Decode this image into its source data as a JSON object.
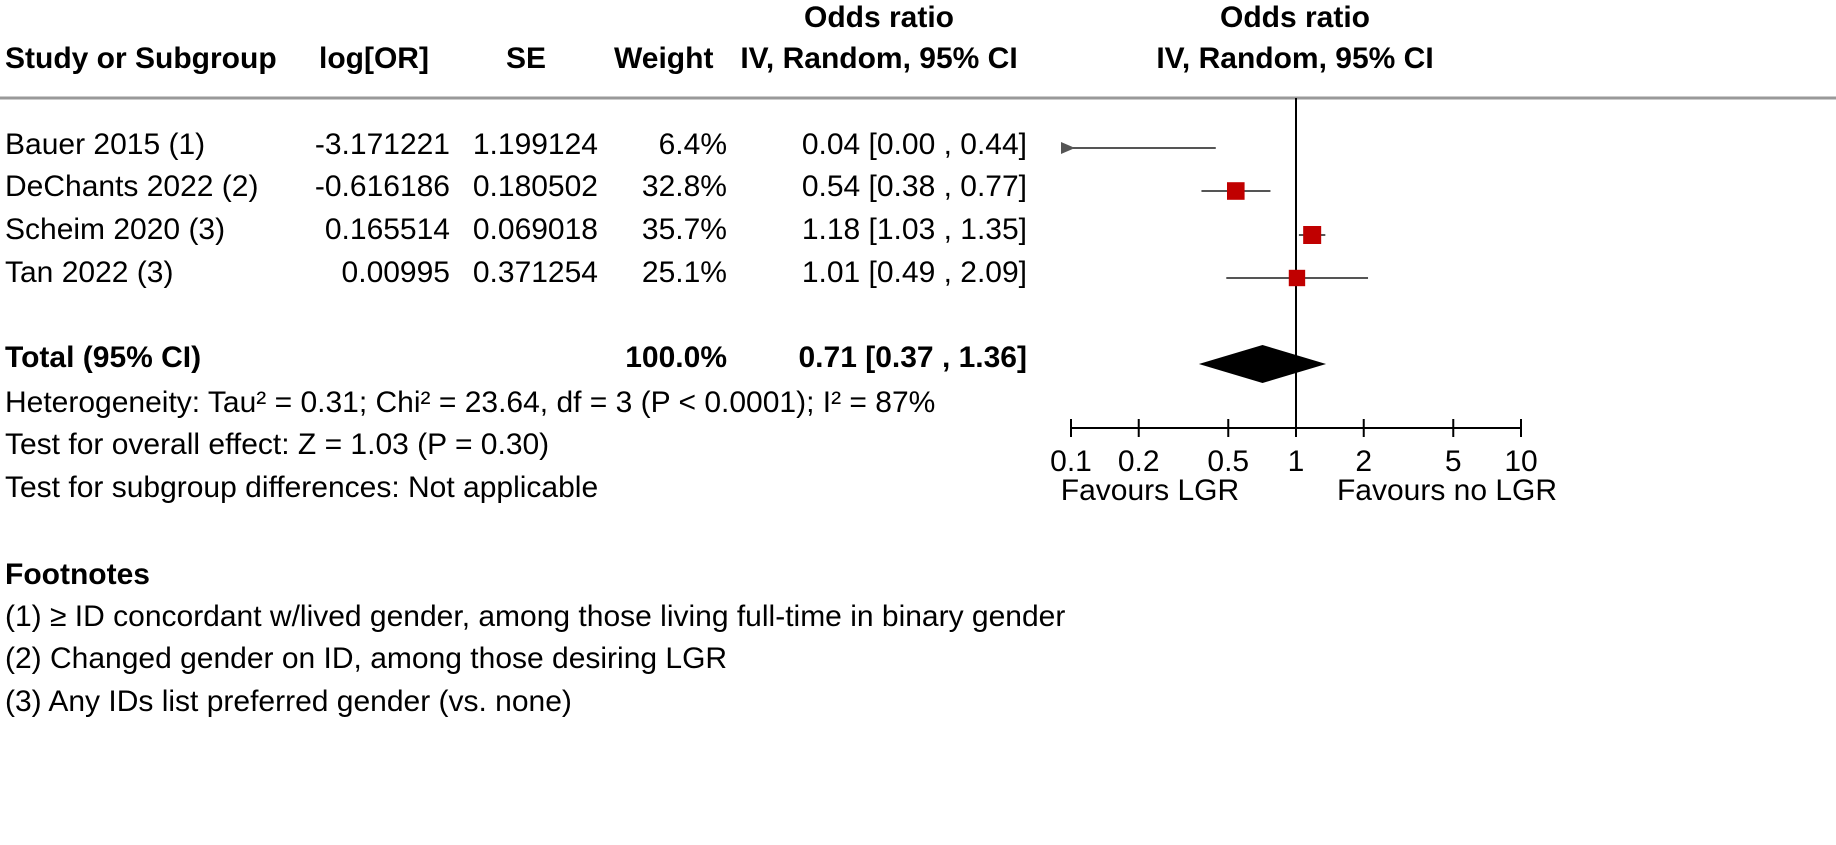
{
  "header": {
    "study": "Study or Subgroup",
    "log_or": "log[OR]",
    "se": "SE",
    "weight": "Weight",
    "or_title_table": "Odds ratio",
    "or_method_table": "IV, Random, 95% CI",
    "or_title_plot": "Odds ratio",
    "or_method_plot": "IV, Random, 95% CI"
  },
  "studies": [
    {
      "name": "Bauer 2015 (1)",
      "log_or": "-3.171221",
      "se": "1.199124",
      "weight": "6.4%",
      "ci_text": "0.04 [0.00 , 0.44]"
    },
    {
      "name": "DeChants 2022 (2)",
      "log_or": "-0.616186",
      "se": "0.180502",
      "weight": "32.8%",
      "ci_text": "0.54 [0.38 , 0.77]"
    },
    {
      "name": "Scheim 2020 (3)",
      "log_or": "0.165514",
      "se": "0.069018",
      "weight": "35.7%",
      "ci_text": "1.18 [1.03 , 1.35]"
    },
    {
      "name": "Tan 2022 (3)",
      "log_or": "0.00995",
      "se": "0.371254",
      "weight": "25.1%",
      "ci_text": "1.01 [0.49 , 2.09]"
    }
  ],
  "total": {
    "label": "Total (95% CI)",
    "weight": "100.0%",
    "ci_text": "0.71 [0.37 , 1.36]"
  },
  "stats": {
    "heterogeneity": "Heterogeneity: Tau² = 0.31; Chi² = 23.64, df = 3 (P < 0.0001); I² = 87%",
    "overall": "Test for overall effect: Z = 1.03 (P = 0.30)",
    "subgroup": "Test for subgroup differences: Not applicable"
  },
  "footnotes": {
    "title": "Footnotes",
    "items": [
      "(1) ≥ ID concordant w/lived gender, among those living full-time in binary gender",
      "(2) Changed gender on ID, among those desiring LGR",
      "(3) Any IDs list preferred gender (vs. none)"
    ]
  },
  "chart_data": {
    "type": "forest",
    "scale": "log",
    "xlim": [
      0.1,
      10
    ],
    "x_ticks": [
      0.1,
      0.2,
      0.5,
      1,
      2,
      5,
      10
    ],
    "x_tick_labels": [
      "0.1",
      "0.2",
      "0.5",
      "1",
      "2",
      "5",
      "10"
    ],
    "favours_left": "Favours LGR",
    "favours_right": "Favours no LGR",
    "null_line": 1,
    "series": [
      {
        "or": 0.04,
        "lower": 0.0,
        "upper": 0.44,
        "weight": 6.4
      },
      {
        "or": 0.54,
        "lower": 0.38,
        "upper": 0.77,
        "weight": 32.8
      },
      {
        "or": 1.18,
        "lower": 1.03,
        "upper": 1.35,
        "weight": 35.7
      },
      {
        "or": 1.01,
        "lower": 0.49,
        "upper": 2.09,
        "weight": 25.1
      }
    ],
    "pooled": {
      "or": 0.71,
      "lower": 0.37,
      "upper": 1.36
    },
    "colors": {
      "marker": "#c00000",
      "line": "#555555",
      "diamond": "#000000",
      "axis": "#000000",
      "rule": "#999999"
    }
  }
}
